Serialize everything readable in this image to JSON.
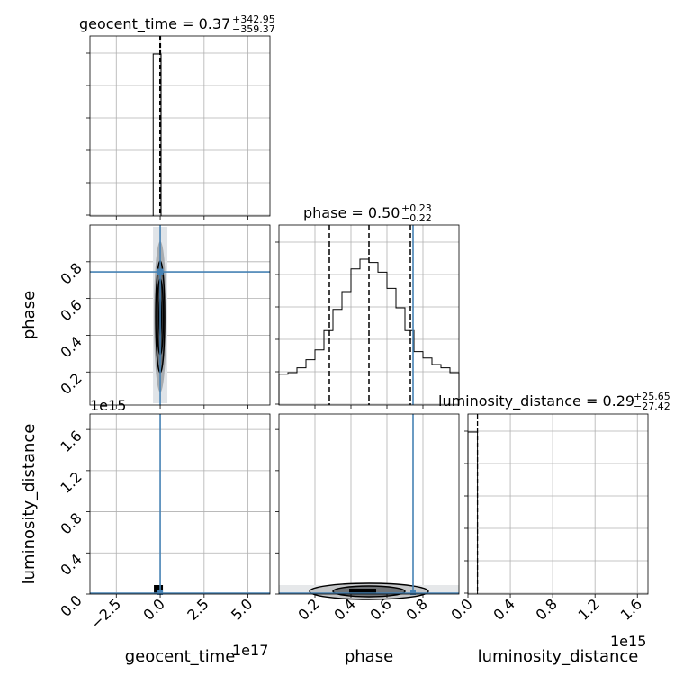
{
  "chart_data": {
    "type": "corner",
    "truth_color": "#4682b4",
    "parameters": [
      "geocent_time",
      "phase",
      "luminosity_distance"
    ],
    "panels": {
      "geocent_time_hist": {
        "type": "histogram",
        "title_label": "geocent_time = 0.37",
        "title_plus": "+342.95",
        "title_minus": "−359.37",
        "x_range": [
          -4.0,
          6.25
        ],
        "bins": [
          {
            "x0": -0.4,
            "x1": 0.05,
            "value": 1.0
          }
        ],
        "quantiles": [
          -0.02,
          0.0,
          0.02
        ],
        "y_tick_count": 6
      },
      "phase_hist": {
        "type": "histogram",
        "title_label": "phase = 0.50",
        "title_plus": "+0.23",
        "title_minus": "−0.22",
        "x_range": [
          0.0,
          1.0
        ],
        "bin_edges": [
          0.0,
          0.05,
          0.1,
          0.15,
          0.2,
          0.25,
          0.3,
          0.35,
          0.4,
          0.45,
          0.5,
          0.55,
          0.6,
          0.65,
          0.7,
          0.75,
          0.8,
          0.85,
          0.9,
          0.95,
          1.0
        ],
        "values": [
          0.19,
          0.2,
          0.23,
          0.28,
          0.34,
          0.46,
          0.59,
          0.7,
          0.84,
          0.9,
          0.88,
          0.82,
          0.72,
          0.6,
          0.46,
          0.33,
          0.29,
          0.25,
          0.23,
          0.2
        ],
        "quantiles": [
          0.28,
          0.5,
          0.73
        ],
        "truth": 0.745,
        "y_tick_count": 6
      },
      "luminosity_distance_hist": {
        "type": "histogram",
        "title_label": "luminosity_distance = 0.29",
        "title_plus": "+25.65",
        "title_minus": "−27.42",
        "x_range": [
          0.0,
          1.7
        ],
        "bins": [
          {
            "x0": 0.0,
            "x1": 0.09,
            "value": 1.0
          }
        ],
        "quantiles": [
          0.09
        ],
        "y_tick_count": 6
      },
      "phase_vs_geocent_time": {
        "type": "contour",
        "x_range": [
          -4.0,
          6.25
        ],
        "y_range": [
          0.02,
          1.0
        ],
        "truth_x": 0.0,
        "truth_y": 0.745,
        "center_x": 0.0,
        "center_y": 0.5,
        "y_ticks": [
          0.2,
          0.4,
          0.6,
          0.8
        ],
        "y_tick_labels": [
          "0.2",
          "0.4",
          "0.6",
          "0.8"
        ]
      },
      "luminosity_distance_vs_geocent_time": {
        "type": "contour",
        "x_range": [
          -4.0,
          6.25
        ],
        "y_range": [
          0.0,
          1.75
        ],
        "truth_x": 0.0,
        "truth_y": 0.0,
        "y_ticks": [
          0.0,
          0.4,
          0.8,
          1.2,
          1.6
        ],
        "y_tick_labels": [
          "0.0",
          "0.4",
          "0.8",
          "1.2",
          "1.6"
        ],
        "x_ticks": [
          -2.5,
          0.0,
          2.5,
          5.0
        ],
        "x_tick_labels": [
          "−2.5",
          "0.0",
          "2.5",
          "5.0"
        ]
      },
      "luminosity_distance_vs_phase": {
        "type": "contour",
        "x_range": [
          0.0,
          1.0
        ],
        "y_range": [
          0.0,
          1.75
        ],
        "truth_x": 0.745,
        "truth_y": 0.0,
        "x_ticks": [
          0.2,
          0.4,
          0.6,
          0.8
        ],
        "x_tick_labels": [
          "0.2",
          "0.4",
          "0.6",
          "0.8"
        ]
      }
    },
    "diag_x_ticks_ld": [
      0.0,
      0.4,
      0.8,
      1.2,
      1.6
    ],
    "diag_x_tick_labels_ld": [
      "0.0",
      "0.4",
      "0.8",
      "1.2",
      "1.6"
    ],
    "xlabels": [
      "geocent_time",
      "phase",
      "luminosity_distance"
    ],
    "ylabels": [
      "phase",
      "luminosity_distance"
    ],
    "offset_labels": {
      "geocent_time_x": "1e17",
      "luminosity_distance_x": "1e15",
      "luminosity_distance_y": "1e15"
    }
  }
}
